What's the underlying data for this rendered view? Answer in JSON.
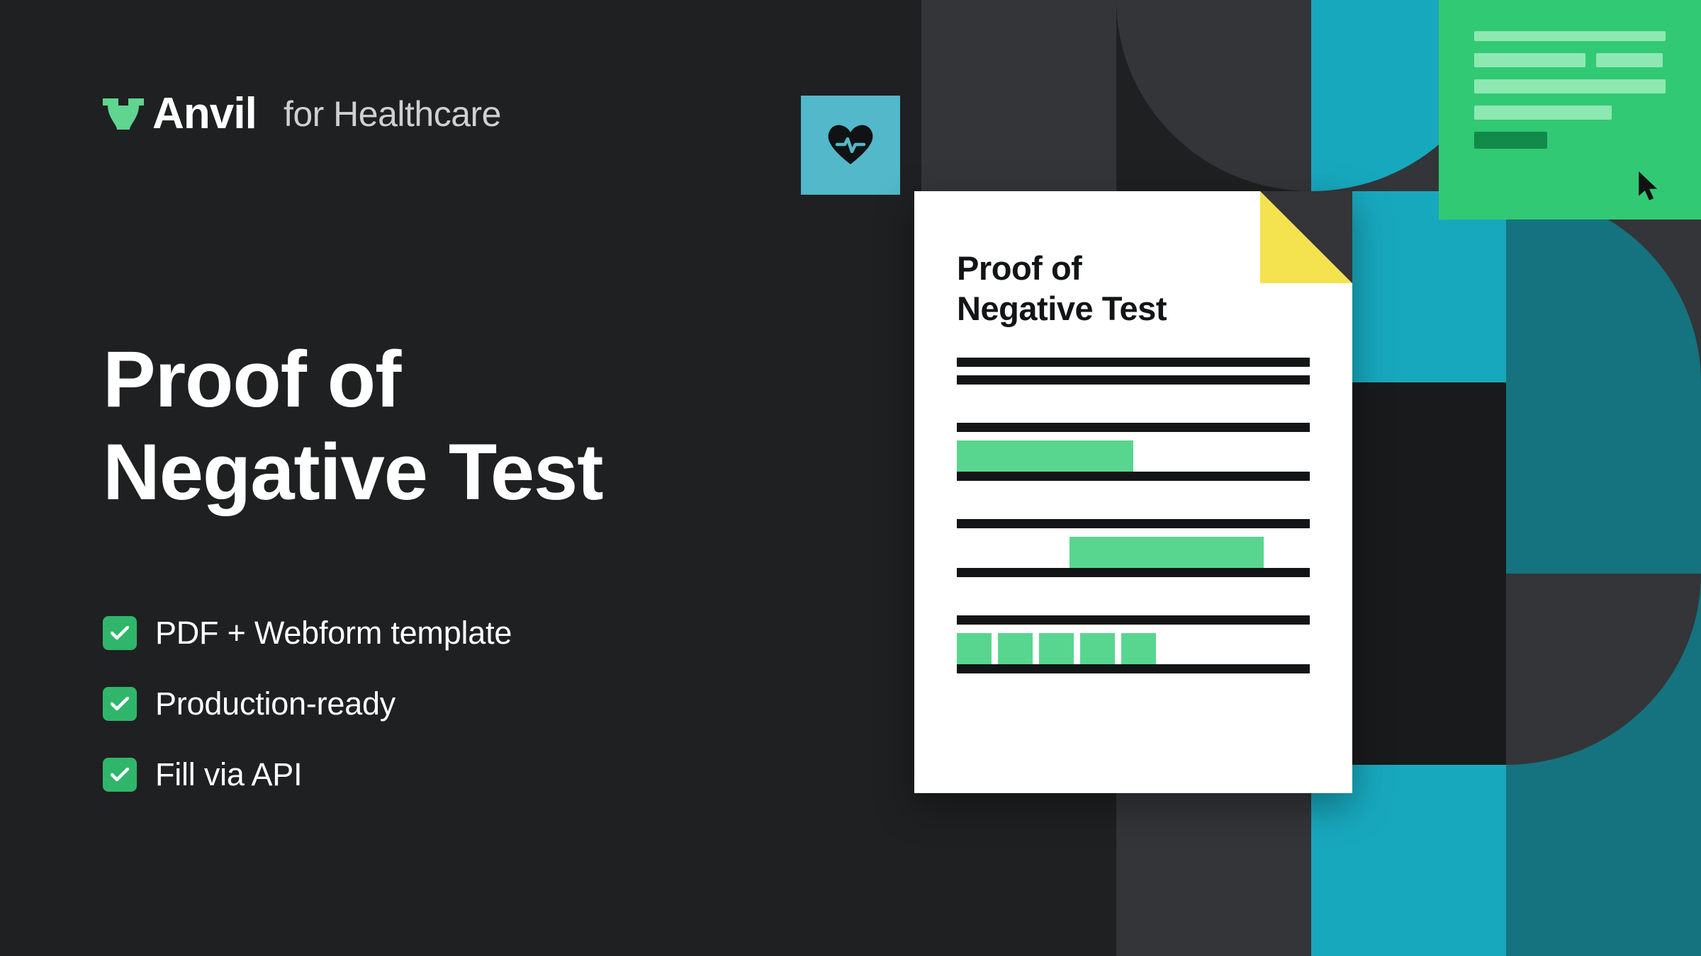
{
  "colors": {
    "bg_dark": "#1f2021",
    "bg_darker": "#191a1b",
    "gray_dark": "#333538",
    "teal": "#14737e",
    "teal_dark": "#0f5a66",
    "cyan": "#18a8be",
    "cyan_light": "#5bc7d5",
    "green": "#2fb66b",
    "green_light": "#5fd58f",
    "green_pale": "#8ee8b2",
    "green_dark": "#128a4a",
    "yellow": "#f5e24f",
    "white": "#ffffff",
    "black": "#111213",
    "badge_bg": "#52b8ca"
  },
  "logo": {
    "brand": "Anvil",
    "tagline": "for Healthcare"
  },
  "headline": {
    "line1": "Proof of",
    "line2": "Negative Test"
  },
  "features": [
    "PDF + Webform template",
    "Production-ready",
    "Fill via API"
  ],
  "document": {
    "title_line1": "Proof of",
    "title_line2": "Negative Test",
    "title_color": "#131416",
    "line_color": "#131416",
    "fill_color": "#58d690",
    "field_groups": [
      {
        "type": "header",
        "lines": 2
      },
      {
        "type": "fill_field",
        "fill_width_pct": 50
      },
      {
        "type": "fill_field_right",
        "fill_width_pct": 55,
        "fill_offset_pct": 32
      },
      {
        "type": "cells",
        "count": 5
      }
    ]
  },
  "form_card": {
    "bg_color": "#32c974",
    "line_color": "#8ee8b2",
    "button_color": "#128a4a",
    "lines": [
      {
        "width_pct": 100,
        "height": 14
      },
      {
        "row": [
          {
            "width_pct": 58
          },
          {
            "width_pct": 35
          }
        ]
      },
      {
        "width_pct": 100
      },
      {
        "width_pct": 72
      }
    ],
    "button_width_pct": 38
  },
  "bg_grid": {
    "rows": 5,
    "cols": 4,
    "cell_size": 275,
    "tiles": [
      {
        "r": 0,
        "c": 0,
        "type": "solid",
        "color": "#333538"
      },
      {
        "r": 0,
        "c": 1,
        "type": "quarter_tr",
        "color": "#333538",
        "bg": "#1f2021"
      },
      {
        "r": 0,
        "c": 2,
        "type": "quarter_tl",
        "color": "#18a8be",
        "bg": "#333538"
      },
      {
        "r": 1,
        "c": 0,
        "type": "solid",
        "color": "#1f2021"
      },
      {
        "r": 1,
        "c": 1,
        "type": "solid",
        "color": "#333538"
      },
      {
        "r": 1,
        "c": 2,
        "type": "solid",
        "color": "#18a8be"
      },
      {
        "r": 1,
        "c": 3,
        "type": "quarter_bl",
        "color": "#14737e",
        "bg": "#333538"
      },
      {
        "r": 2,
        "c": 3,
        "type": "solid",
        "color": "#14737e"
      },
      {
        "r": 3,
        "c": 3,
        "type": "quarter_tl",
        "color": "#333538",
        "bg": "#14737e"
      },
      {
        "r": 4,
        "c": 0,
        "type": "solid",
        "color": "#1f2021"
      },
      {
        "r": 4,
        "c": 1,
        "type": "solid",
        "color": "#333538"
      },
      {
        "r": 4,
        "c": 2,
        "type": "solid",
        "color": "#18a8be"
      },
      {
        "r": 4,
        "c": 3,
        "type": "solid",
        "color": "#14737e"
      }
    ]
  }
}
